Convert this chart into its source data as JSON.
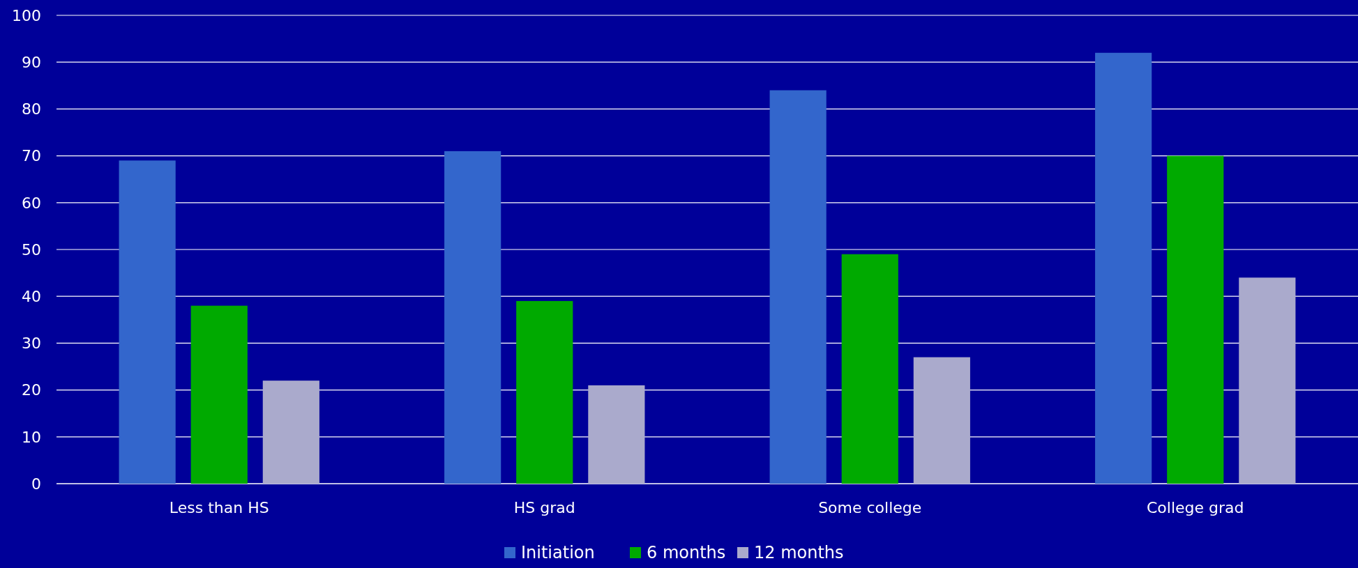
{
  "chart_data": {
    "type": "bar",
    "categories": [
      "Less than HS",
      "HS grad",
      "Some college",
      "College grad"
    ],
    "series": [
      {
        "name": "Initiation",
        "color": "#3366cc",
        "values": [
          69,
          71,
          84,
          92
        ]
      },
      {
        "name": "6 months",
        "color": "#00aa00",
        "values": [
          38,
          39,
          49,
          70
        ]
      },
      {
        "name": "12 months",
        "color": "#aaaacc",
        "values": [
          22,
          21,
          27,
          44
        ]
      }
    ],
    "ylim": [
      0,
      100
    ],
    "yticks": [
      0,
      10,
      20,
      30,
      40,
      50,
      60,
      70,
      80,
      90,
      100
    ],
    "grid": "y",
    "legend": "bottom"
  }
}
